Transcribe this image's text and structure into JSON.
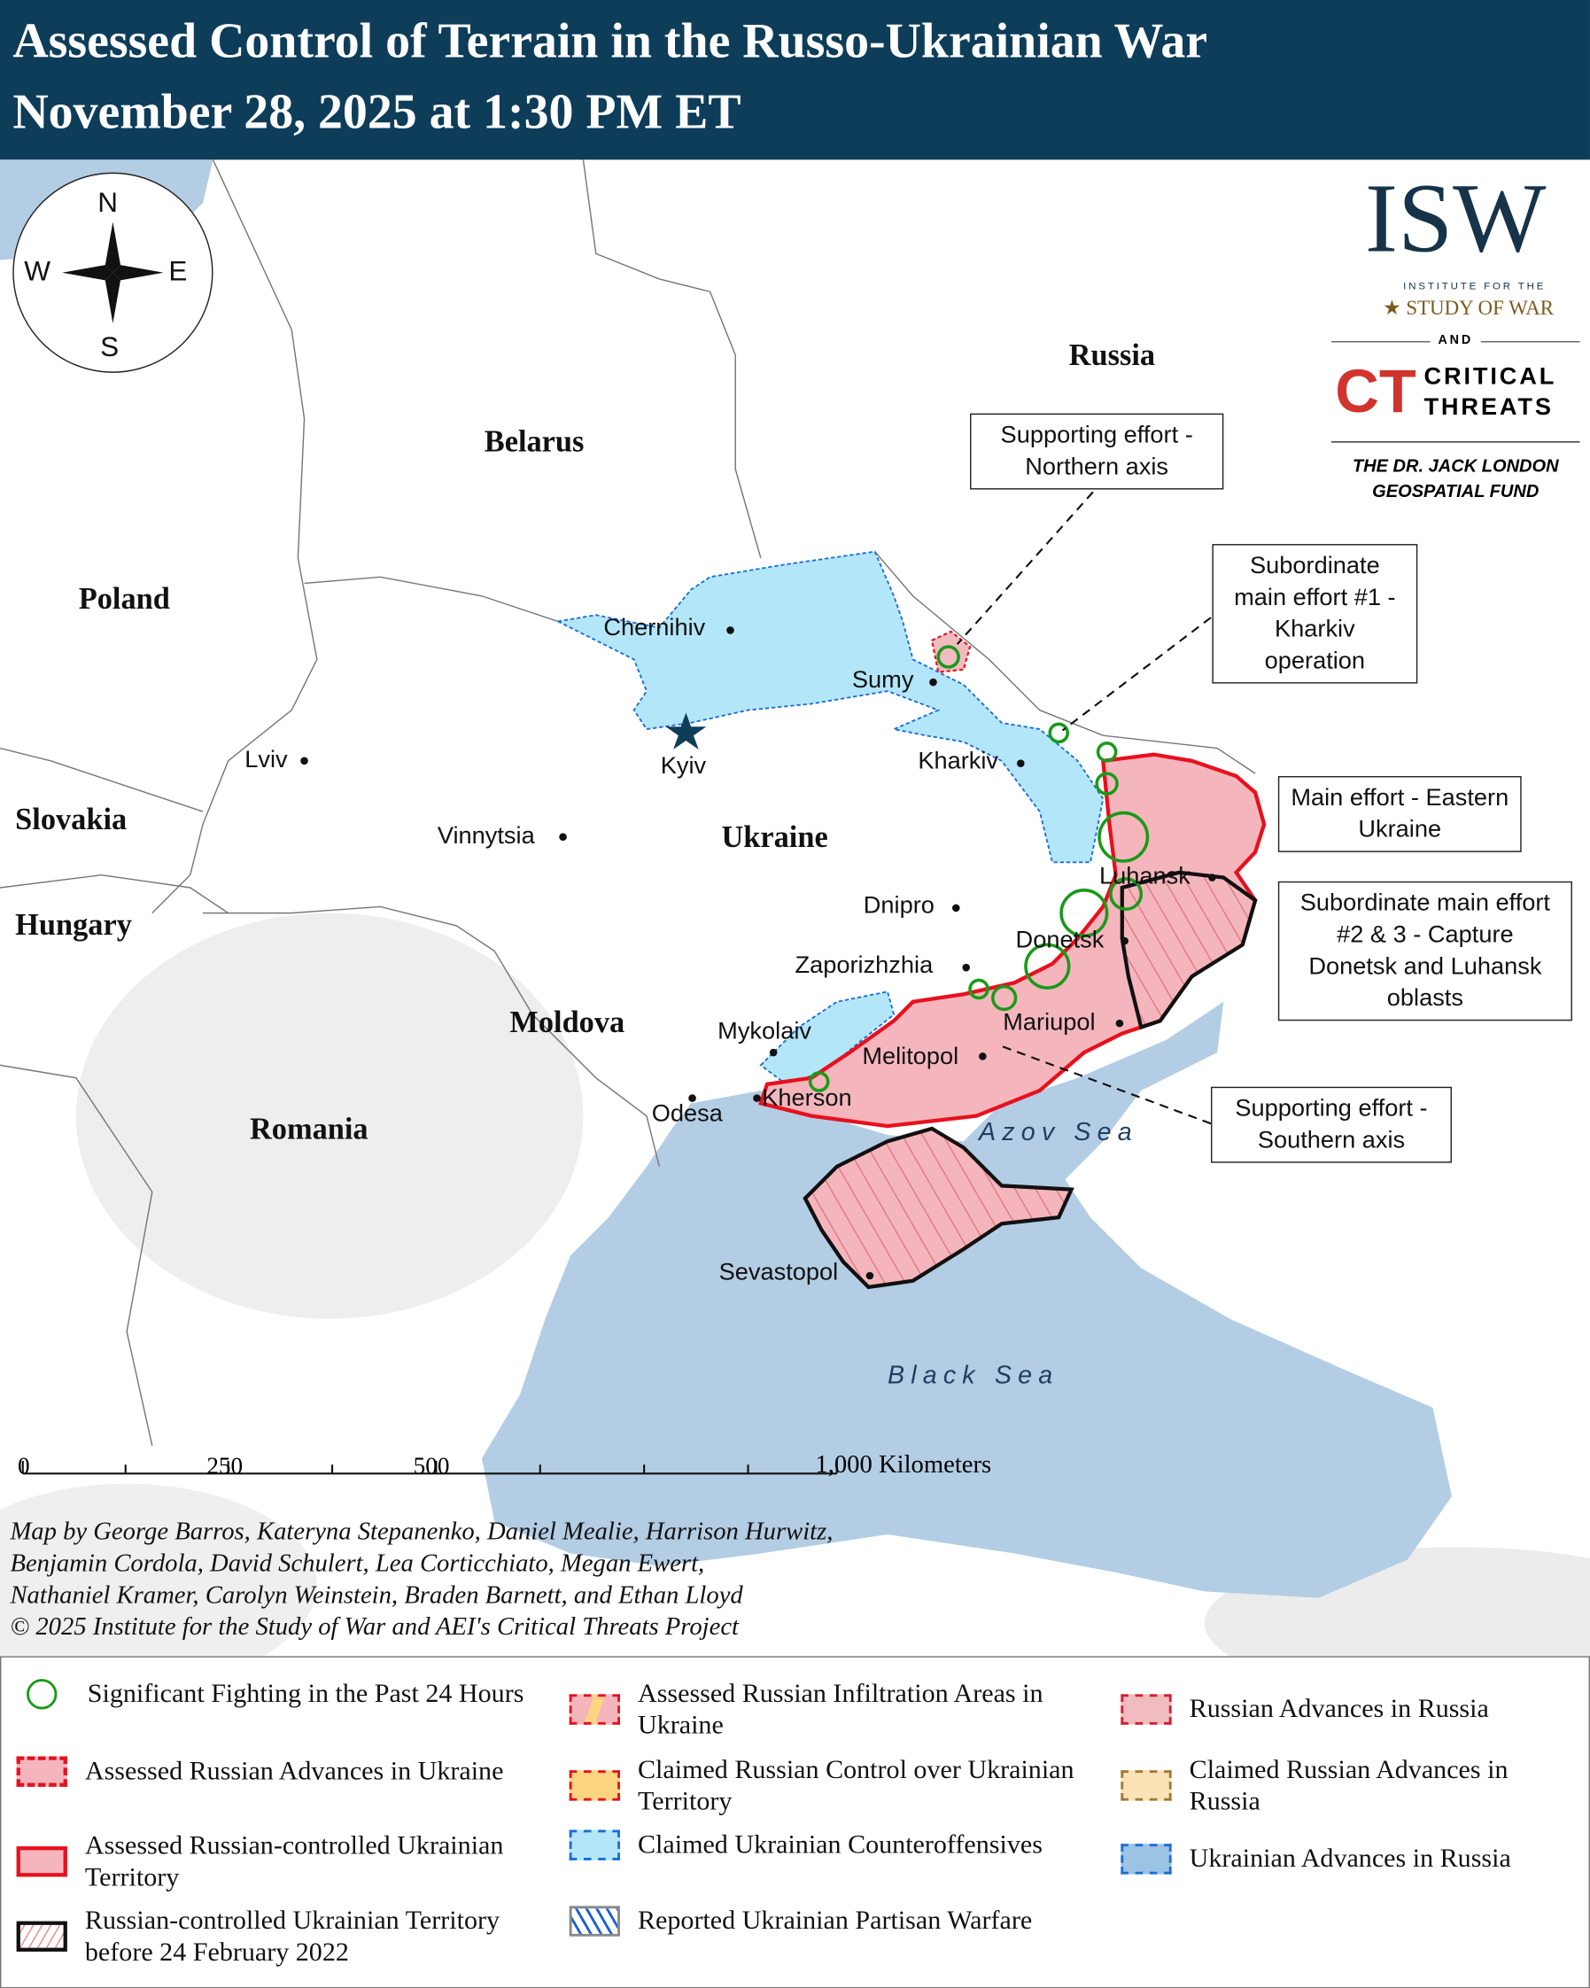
{
  "header": {
    "title_line1": "Assessed Control of Terrain in the Russo-Ukrainian War",
    "title_line2": "November 28, 2025 at 1:30 PM ET"
  },
  "compass": {
    "n": "N",
    "s": "S",
    "e": "E",
    "w": "W"
  },
  "logo": {
    "isw": "ISW",
    "isw_sub1": "INSTITUTE FOR THE",
    "isw_sub2": "STUDY OF WAR",
    "and": "AND",
    "ct": "CRITICAL THREATS",
    "fund_line1": "THE DR. JACK LONDON",
    "fund_line2": "GEOSPATIAL FUND",
    "colors": {
      "isw_navy": "#16334a",
      "isw_gold": "#7d5a1e",
      "ct_red": "#d0342c"
    }
  },
  "countries": {
    "russia": "Russia",
    "belarus": "Belarus",
    "poland": "Poland",
    "ukraine": "Ukraine",
    "slovakia": "Slovakia",
    "hungary": "Hungary",
    "moldova": "Moldova",
    "romania": "Romania"
  },
  "cities": {
    "chernihiv": "Chernihiv",
    "sumy": "Sumy",
    "kyiv": "Kyiv",
    "kharkiv": "Kharkiv",
    "lviv": "Lviv",
    "vinnytsia": "Vinnytsia",
    "dnipro": "Dnipro",
    "luhansk": "Luhansk",
    "donetsk": "Donetsk",
    "zaporizhzhia": "Zaporizhzhia",
    "mariupol": "Mariupol",
    "mykolaiv": "Mykolaiv",
    "melitopol": "Melitopol",
    "kherson": "Kherson",
    "odesa": "Odesa",
    "sevastopol": "Sevastopol"
  },
  "seas": {
    "azov": "Azov Sea",
    "black": "Black Sea"
  },
  "callouts": {
    "northern": "Supporting effort - Northern axis",
    "kharkiv": "Subordinate main effort #1 - Kharkiv operation",
    "eastern": "Main effort - Eastern Ukraine",
    "donetsk": "Subordinate main effort #2 & 3 - Capture Donetsk and Luhansk oblasts",
    "southern": "Supporting effort - Southern axis"
  },
  "scale_bar": {
    "t0": "0",
    "t1": "250",
    "t2": "500",
    "t3": "1,000 Kilometers"
  },
  "credits": {
    "line1": "Map by George Barros, Kateryna Stepanenko, Daniel Mealie, Harrison Hurwitz,",
    "line2": "Benjamin Cordola, David Schulert, Lea Corticchiato, Megan Ewert,",
    "line3": "Nathaniel Kramer, Carolyn Weinstein, Braden Barnett, and Ethan Lloyd",
    "line4": "© 2025 Institute for the Study of War and AEI's Critical Threats Project"
  },
  "legend": [
    {
      "label": "Significant Fighting in the Past 24 Hours",
      "icon": "green-circle"
    },
    {
      "label": "Assessed Russian Advances in Ukraine",
      "color": "#f4b6bc"
    },
    {
      "label": "Assessed Russian-controlled Ukrainian Territory",
      "color": "#f4b6bc"
    },
    {
      "label": "Russian-controlled Ukrainian Territory before 24 February 2022",
      "color": "#ffffff"
    },
    {
      "label": "Assessed Russian Infiltration Areas in Ukraine",
      "color": "#f4b6bc"
    },
    {
      "label": "Claimed Russian Control over Ukrainian Territory",
      "color": "#fdd580"
    },
    {
      "label": "Claimed Ukrainian Counteroffensives",
      "color": "#b3e6f8"
    },
    {
      "label": "Reported Ukrainian Partisan Warfare",
      "color": "#ffffff"
    },
    {
      "label": "Russian Advances in Russia",
      "color": "#f0bcc0"
    },
    {
      "label": "Claimed Russian Advances in Russia",
      "color": "#fbe2b6"
    },
    {
      "label": "Ukrainian Advances in Russia",
      "color": "#9cc2e4"
    }
  ],
  "colors": {
    "sea": "#b3cde4",
    "header": "#0e3d5a",
    "russian_control": "#f4b6bc",
    "russian_border": "#e8101e",
    "ukr_counter": "#b3e6f8",
    "fighting": "#22aa22"
  }
}
